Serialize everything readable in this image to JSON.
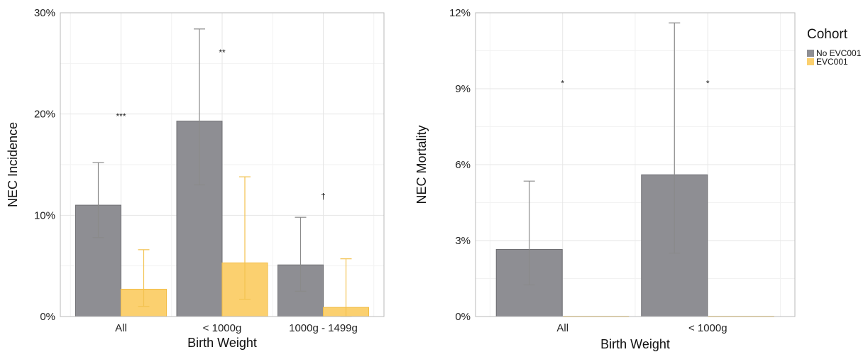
{
  "legend": {
    "title": "Cohort",
    "items": [
      {
        "label": "No EVC001",
        "color": "#8e8e93"
      },
      {
        "label": "EVC001",
        "color": "#fbd06f"
      }
    ]
  },
  "colors": {
    "no_evc_fill": "#8e8e93",
    "no_evc_stroke": "#6e6e72",
    "no_evc_error": "#8a8a8a",
    "evc_fill": "#fbd06f",
    "evc_stroke": "#f2bd45",
    "evc_error": "#f2c24f",
    "grid_major": "#e6e6e6",
    "grid_minor": "#f2f2f2",
    "panel_border": "#b8b8b8"
  },
  "chart_data": [
    {
      "type": "bar",
      "xlabel": "Birth Weight",
      "ylabel": "NEC Incidence",
      "ylim": [
        0,
        30
      ],
      "yticks": [
        0,
        10,
        20,
        30
      ],
      "ytick_labels": [
        "0%",
        "10%",
        "20%",
        "30%"
      ],
      "grid": true,
      "categories": [
        "All",
        "< 1000g",
        "1000g - 1499g"
      ],
      "series": [
        {
          "name": "No EVC001",
          "values": [
            11.0,
            19.3,
            5.1
          ],
          "err_low": [
            7.8,
            13.0,
            2.5
          ],
          "err_high": [
            15.2,
            28.4,
            9.8
          ]
        },
        {
          "name": "EVC001",
          "values": [
            2.7,
            5.3,
            0.9
          ],
          "err_low": [
            1.0,
            1.7,
            0.0
          ],
          "err_high": [
            6.6,
            13.8,
            5.7
          ]
        }
      ],
      "annotations": [
        {
          "category": "All",
          "text": "***",
          "y": 19.5
        },
        {
          "category": "< 1000g",
          "text": "**",
          "y": 25.8
        },
        {
          "category": "1000g - 1499g",
          "text": "†",
          "y": 11.6
        }
      ]
    },
    {
      "type": "bar",
      "xlabel": "Birth Weight",
      "ylabel": "NEC Mortality",
      "ylim": [
        0,
        12
      ],
      "yticks": [
        0,
        3,
        6,
        9,
        12
      ],
      "ytick_labels": [
        "0%",
        "3%",
        "6%",
        "9%",
        "12%"
      ],
      "grid": true,
      "categories": [
        "All",
        "< 1000g"
      ],
      "series": [
        {
          "name": "No EVC001",
          "values": [
            2.65,
            5.6
          ],
          "err_low": [
            1.25,
            2.5
          ],
          "err_high": [
            5.35,
            11.6
          ]
        },
        {
          "name": "EVC001",
          "values": [
            0,
            0
          ],
          "err_low": [
            0,
            0
          ],
          "err_high": [
            0,
            0
          ]
        }
      ],
      "annotations": [
        {
          "category": "All",
          "text": "*",
          "y": 9.1
        },
        {
          "category": "< 1000g",
          "text": "*",
          "y": 9.1
        }
      ],
      "legend_position": "right"
    }
  ]
}
